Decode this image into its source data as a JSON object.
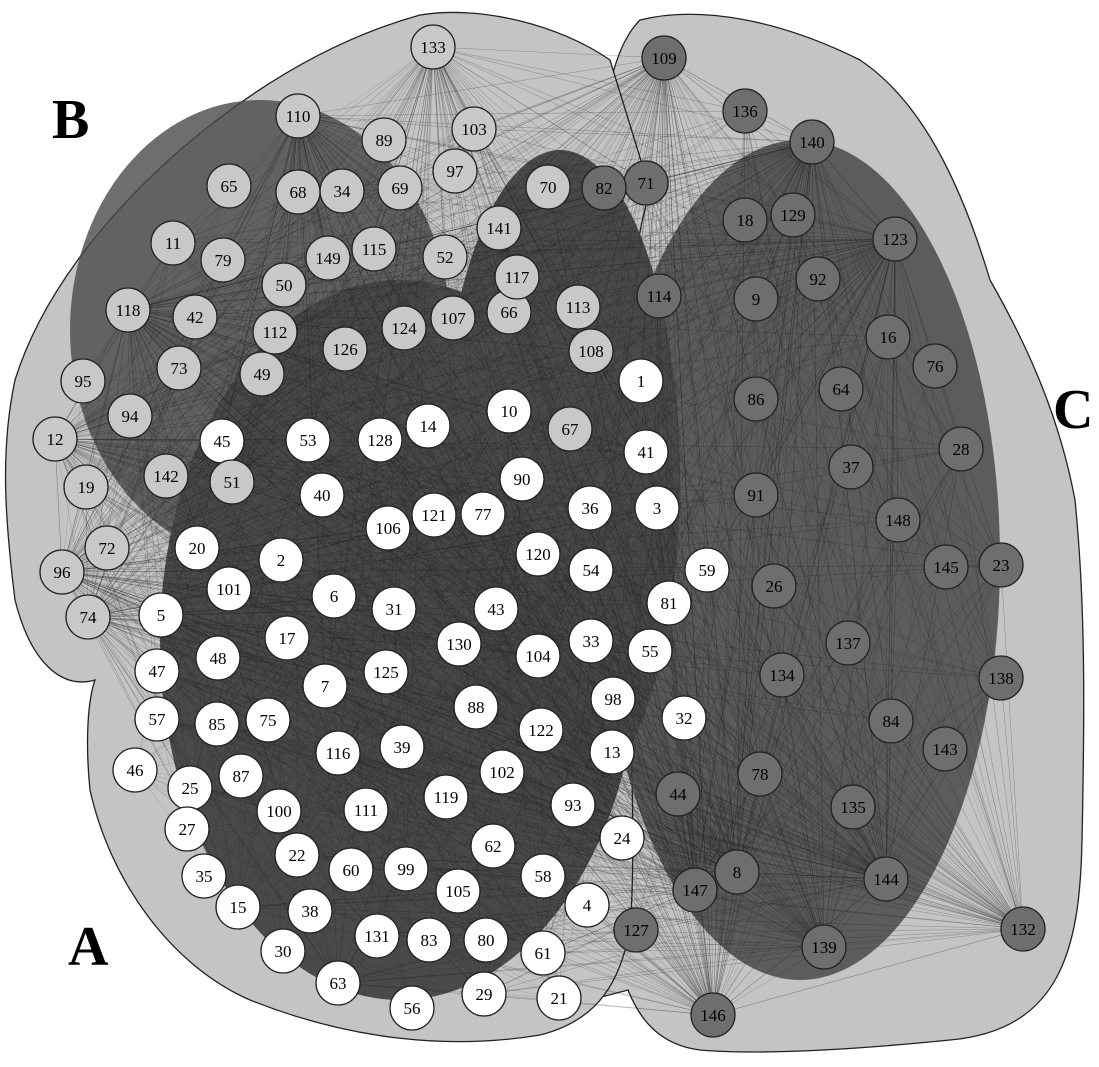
{
  "colors": {
    "hull": "#c4c4c4",
    "edge_dense": "#4a4a4a",
    "edge_line": "#1e1e1e",
    "group_A_node": "#ffffff",
    "group_B_node": "#c8c8c8",
    "group_C_node": "#6e6e6e"
  },
  "groups": [
    {
      "id": "A",
      "label": "A",
      "color": "#ffffff",
      "nodes": [
        "1",
        "2",
        "3",
        "4",
        "5",
        "6",
        "7",
        "10",
        "13",
        "14",
        "15",
        "17",
        "20",
        "21",
        "22",
        "24",
        "25",
        "27",
        "29",
        "30",
        "31",
        "32",
        "33",
        "35",
        "36",
        "38",
        "39",
        "40",
        "41",
        "43",
        "45",
        "46",
        "47",
        "48",
        "53",
        "54",
        "55",
        "56",
        "57",
        "58",
        "59",
        "60",
        "61",
        "62",
        "63",
        "75",
        "77",
        "80",
        "81",
        "83",
        "85",
        "87",
        "88",
        "90",
        "93",
        "98",
        "99",
        "100",
        "101",
        "102",
        "104",
        "105",
        "106",
        "111",
        "116",
        "119",
        "120",
        "121",
        "122",
        "125",
        "128",
        "130",
        "131"
      ]
    },
    {
      "id": "B",
      "label": "B",
      "color": "#c8c8c8",
      "nodes": [
        "11",
        "12",
        "19",
        "34",
        "42",
        "49",
        "50",
        "51",
        "52",
        "65",
        "66",
        "67",
        "68",
        "69",
        "70",
        "72",
        "73",
        "74",
        "79",
        "89",
        "94",
        "95",
        "96",
        "97",
        "103",
        "107",
        "108",
        "110",
        "112",
        "113",
        "115",
        "117",
        "118",
        "124",
        "126",
        "133",
        "141",
        "142",
        "149"
      ]
    },
    {
      "id": "C",
      "label": "C",
      "color": "#6e6e6e",
      "nodes": [
        "8",
        "9",
        "16",
        "18",
        "23",
        "26",
        "28",
        "37",
        "44",
        "64",
        "71",
        "76",
        "78",
        "82",
        "84",
        "86",
        "91",
        "92",
        "109",
        "114",
        "123",
        "127",
        "129",
        "132",
        "134",
        "135",
        "136",
        "137",
        "138",
        "139",
        "140",
        "143",
        "144",
        "145",
        "146",
        "147",
        "148"
      ]
    }
  ]
}
